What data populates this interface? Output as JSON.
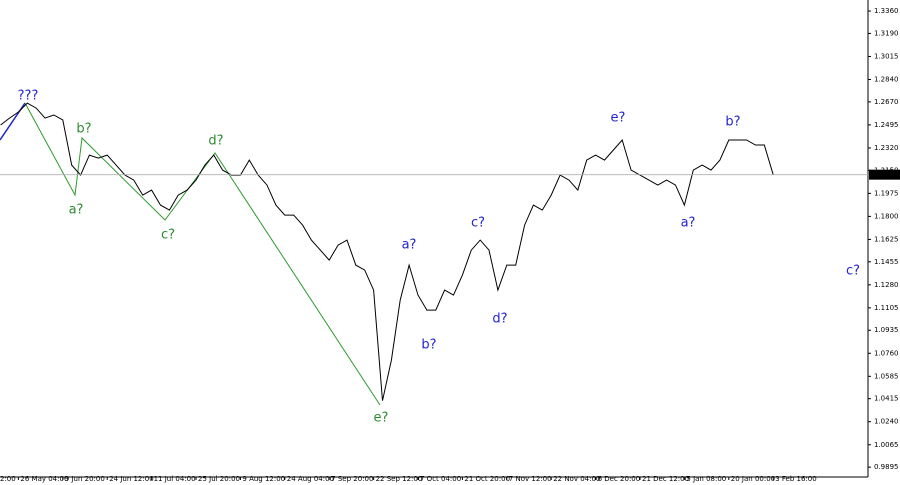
{
  "chart_data": {
    "type": "line",
    "categories": [
      "2:00",
      null,
      null,
      null,
      null,
      "26 May 04:00",
      null,
      null,
      null,
      null,
      "9 Jun 20:00",
      null,
      null,
      null,
      null,
      "24 Jun 12:00",
      null,
      null,
      null,
      null,
      "11 Jul 04:00",
      null,
      null,
      null,
      null,
      "25 Jul 20:00",
      null,
      null,
      null,
      null,
      "9 Aug 12:00",
      null,
      null,
      null,
      null,
      "24 Aug 04:00",
      null,
      null,
      null,
      null,
      "7 Sep 20:00",
      null,
      null,
      null,
      null,
      "22 Sep 12:00",
      null,
      null,
      null,
      null,
      "7 Oct 04:00",
      null,
      null,
      null,
      null,
      "21 Oct 20:00",
      null,
      null,
      null,
      null,
      "7 Nov 12:00",
      null,
      null,
      null,
      null,
      "22 Nov 04:00",
      null,
      null,
      null,
      null,
      "6 Dec 20:00",
      null,
      null,
      null,
      null,
      "21 Dec 12:00",
      null,
      null,
      null,
      null,
      "5 Jan 08:00",
      null,
      null,
      null,
      null,
      "20 Jan 00:00",
      null,
      null,
      null,
      null,
      "3 Feb 16:00"
    ],
    "series": [
      {
        "color": "#000000",
        "values": [
          null,
          null,
          null,
          1.2494,
          1.2547,
          1.2593,
          1.2661,
          1.2623,
          1.2547,
          1.257,
          1.2532,
          1.219,
          1.2114,
          1.2266,
          1.2243,
          1.2266,
          1.219,
          1.2114,
          1.2076,
          1.1962,
          1.2,
          1.1886,
          1.1848,
          1.1962,
          1.2,
          1.2076,
          1.219,
          1.2266,
          1.2152,
          1.2114,
          1.2114,
          1.2228,
          1.2114,
          1.2038,
          1.1886,
          1.181,
          1.181,
          1.1734,
          1.162,
          1.1544,
          1.1468,
          1.1582,
          1.162,
          1.143,
          1.1392,
          1.124,
          1.04,
          1.0708,
          1.1164,
          1.143,
          1.1202,
          1.1088,
          1.1088,
          1.124,
          1.1202,
          1.1354,
          1.1544,
          1.162,
          1.1544,
          1.124,
          1.143,
          1.143,
          1.1734,
          1.1886,
          1.1848,
          1.1962,
          1.2114,
          1.2076,
          1.2,
          1.2228,
          1.2266,
          1.2228,
          1.2304,
          1.238,
          1.2152,
          1.2114,
          1.2076,
          1.2038,
          1.2076,
          1.2038,
          1.1886,
          1.2152,
          1.219,
          1.2152,
          1.2228,
          1.238,
          1.238,
          1.238,
          1.2342,
          1.2342,
          1.2117
        ]
      }
    ],
    "ylim": [
      0.982,
      1.3444
    ],
    "yticks": [
      0.9895,
      1.0065,
      {
        "value": 1.024,
        "label": "1.0240"
      },
      1.0415,
      1.0585,
      {
        "value": 1.076,
        "label": "1.0760"
      },
      1.0935,
      1.1105,
      {
        "value": 1.128,
        "label": "1.1280"
      },
      1.1455,
      1.1625,
      {
        "value": 1.18,
        "label": "1.1800"
      },
      1.1975,
      {
        "value": 1.215,
        "label": "1.2150"
      },
      {
        "value": 1.232,
        "label": "1.2320"
      },
      1.2495,
      {
        "value": 1.267,
        "label": "1.2670"
      },
      {
        "value": 1.284,
        "label": "1.2840"
      },
      1.3015,
      {
        "value": 1.319,
        "label": "1.3190"
      },
      {
        "value": 1.336,
        "label": "1.3360"
      }
    ],
    "grid": false,
    "current_price": 1.2117,
    "annotations": [
      {
        "text": "???",
        "color": "#2323d6"
      },
      {
        "text": "b?",
        "color": "#2e8b2e"
      },
      {
        "text": "a?",
        "color": "#2e8b2e"
      },
      {
        "text": "c?",
        "color": "#2e8b2e"
      },
      {
        "text": "d?",
        "color": "#2e8b2e"
      },
      {
        "text": "e?",
        "color": "#2e8b2e"
      },
      {
        "text": "a?",
        "color": "#2323d6"
      },
      {
        "text": "b?",
        "color": "#2323d6"
      },
      {
        "text": "c?",
        "color": "#2323d6"
      },
      {
        "text": "d?",
        "color": "#2323d6"
      },
      {
        "text": "e?",
        "color": "#2323d6"
      },
      {
        "text": "a?",
        "color": "#2323d6"
      },
      {
        "text": "b?",
        "color": "#2323d6"
      },
      {
        "text": "c?",
        "color": "#2323d6"
      }
    ]
  }
}
